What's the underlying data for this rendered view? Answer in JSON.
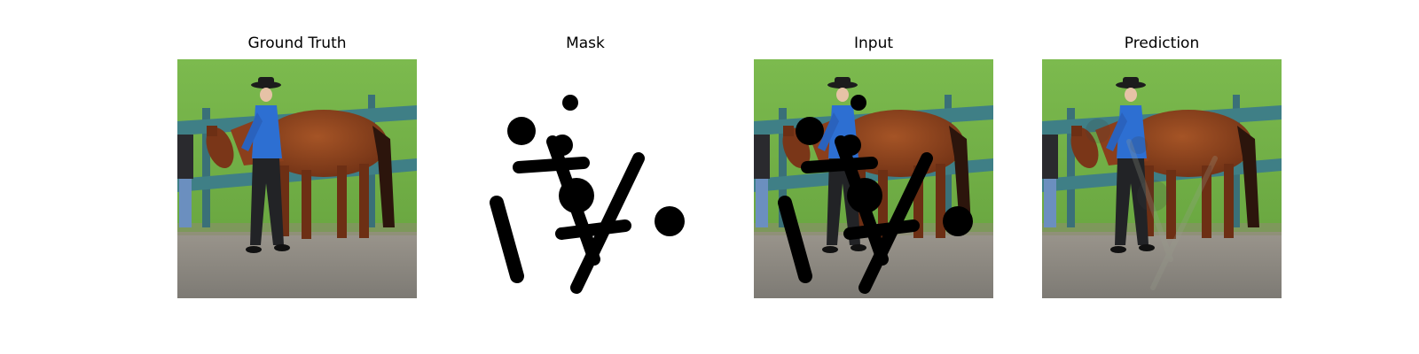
{
  "panels": [
    {
      "title": "Ground Truth"
    },
    {
      "title": "Mask"
    },
    {
      "title": "Input"
    },
    {
      "title": "Prediction"
    }
  ],
  "colors": {
    "grass": "#74b348",
    "fence": "#3f7f86",
    "dirt": "#8b8780",
    "horse": "#8b3f1c",
    "shirt": "#2d6fd2",
    "mask": "#000000"
  }
}
